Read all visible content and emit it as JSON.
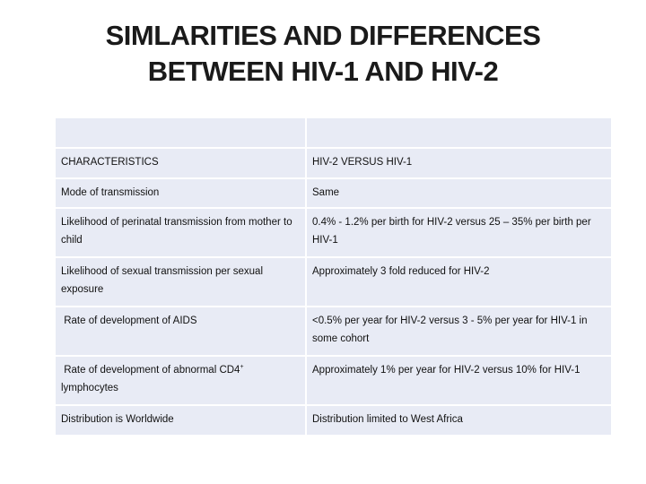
{
  "title": {
    "line1": "SIMLARITIES AND DIFFERENCES",
    "line2": "BETWEEN HIV-1 AND HIV-2"
  },
  "table": {
    "header": {
      "col1": "CHARACTERISTICS",
      "col2": "HIV-2 VERSUS HIV-1"
    },
    "rows": [
      {
        "characteristic": "Mode of transmission",
        "comparison": "Same"
      },
      {
        "characteristic": "Likelihood of perinatal transmission from mother to child",
        "comparison": "0.4% - 1.2% per birth for HIV-2 versus 25 – 35% per birth per HIV-1"
      },
      {
        "characteristic": "Likelihood of sexual transmission per sexual exposure",
        "comparison": "Approximately 3 fold reduced for HIV-2"
      },
      {
        "characteristic": " Rate of development of AIDS",
        "comparison": "<0.5% per year for HIV-2 versus 3 - 5% per year for HIV-1 in some cohort"
      },
      {
        "characteristic_pre": " Rate of development of abnormal CD4",
        "characteristic_sup": "+",
        "characteristic_post": " lymphocytes",
        "comparison": "Approximately 1% per year for HIV-2 versus 10% for HIV-1"
      },
      {
        "characteristic": "Distribution is Worldwide",
        "comparison": "Distribution limited to West Africa"
      }
    ]
  }
}
